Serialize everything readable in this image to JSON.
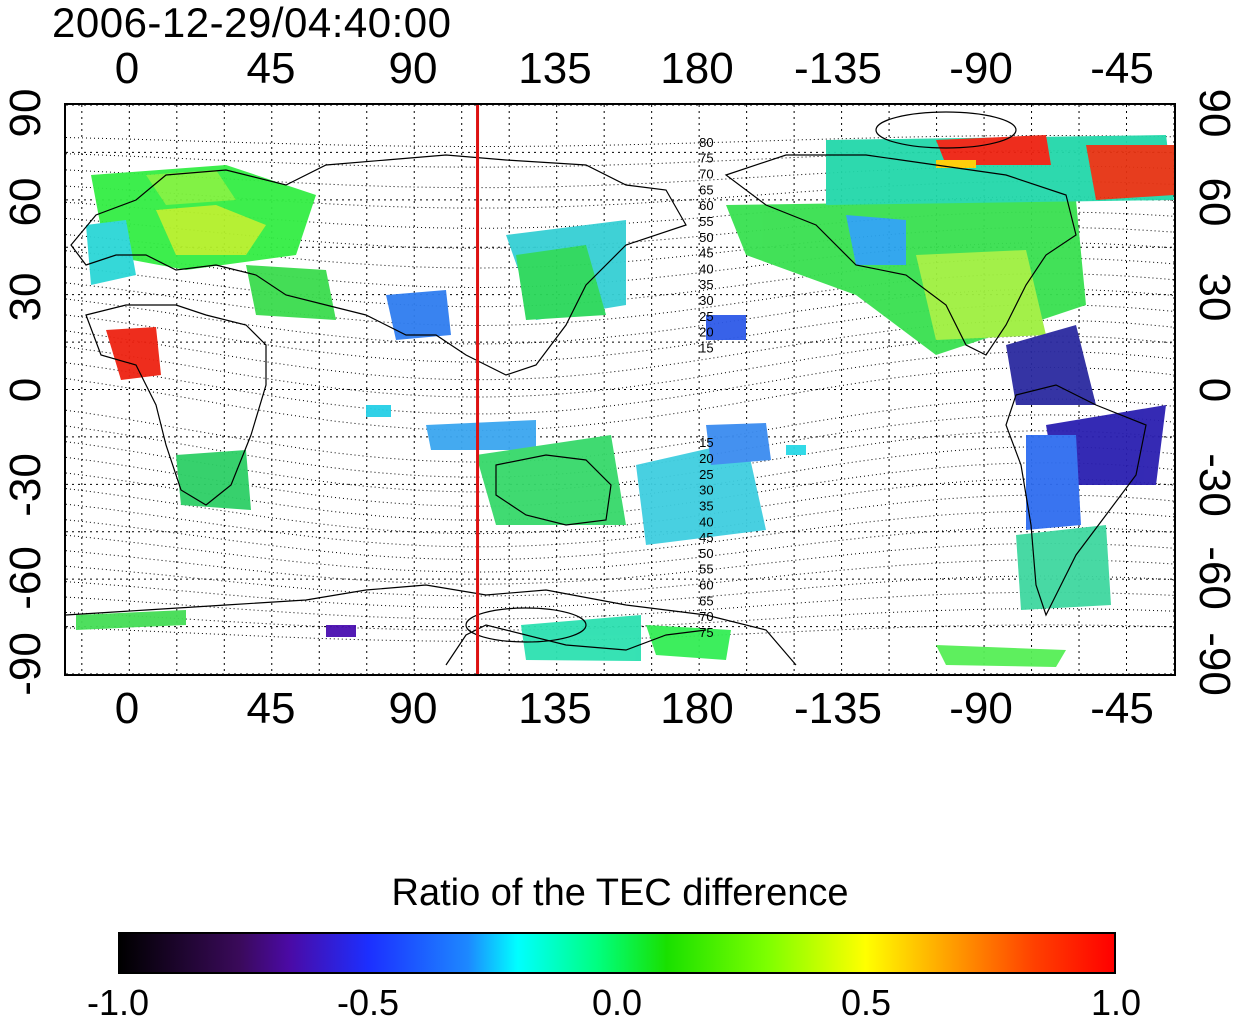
{
  "title": "2006-12-29/04:40:00",
  "axes": {
    "top_ticks": [
      "0",
      "45",
      "90",
      "135",
      "180",
      "-135",
      "-90",
      "-45"
    ],
    "bottom_ticks": [
      "0",
      "45",
      "90",
      "135",
      "180",
      "-135",
      "-90",
      "-45"
    ],
    "left_ticks": [
      "90",
      "60",
      "30",
      "0",
      "-30",
      "-60",
      "-90"
    ],
    "right_ticks": [
      "90",
      "60",
      "30",
      "0",
      "-30",
      "-60",
      "-90"
    ],
    "grid": "dotted",
    "longitude_range": [
      -20,
      330
    ],
    "latitude_range": [
      -90,
      90
    ]
  },
  "map": {
    "projection": "equirectangular",
    "marker_meridian_longitude": 110,
    "marker_color": "#dd1111",
    "contour_labels_north": [
      "80",
      "75",
      "70",
      "65",
      "60",
      "55",
      "50",
      "45",
      "40",
      "35",
      "30",
      "25",
      "20",
      "15"
    ],
    "contour_labels_south": [
      "15",
      "20",
      "25",
      "30",
      "35",
      "40",
      "45",
      "50",
      "55",
      "60",
      "65",
      "70",
      "75"
    ]
  },
  "colorbar": {
    "title": "Ratio of the TEC difference",
    "min": -1.0,
    "max": 1.0,
    "tick_labels": [
      "-1.0",
      "-0.5",
      "0.0",
      "0.5",
      "1.0"
    ],
    "colormap": [
      "#000000",
      "#4b0aa5",
      "#1c2fff",
      "#00ffff",
      "#19e000",
      "#ffff00",
      "#ff0000"
    ]
  }
}
